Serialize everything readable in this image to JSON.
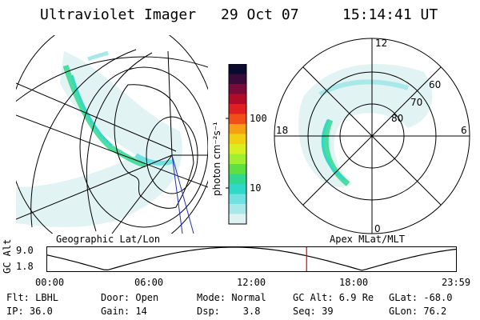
{
  "header": {
    "instrument": "Ultraviolet Imager",
    "date": "29 Oct 07",
    "time": "15:14:41 UT"
  },
  "left_panel": {
    "label": "Geographic Lat/Lon"
  },
  "right_panel": {
    "label": "Apex MLat/MLT",
    "mlt_labels": [
      "12",
      "18",
      "6",
      "0"
    ],
    "mlat_labels": [
      "60",
      "70",
      "80"
    ]
  },
  "colorbar": {
    "unit": "photon cm⁻²s⁻¹",
    "ticks": [
      "100",
      "10"
    ],
    "colors": [
      "#0a0a30",
      "#3a0a3a",
      "#7a0a3a",
      "#b40a2a",
      "#e02020",
      "#f05018",
      "#f5a010",
      "#f0d010",
      "#d8f020",
      "#a0f030",
      "#60e040",
      "#30d890",
      "#30d8c8",
      "#70e0e0",
      "#a8e8e8",
      "#dff2f2"
    ]
  },
  "timeline": {
    "ylabel": "GC Alt",
    "ytop": "9.0",
    "ybottom": "1.8",
    "xticks": [
      "00:00",
      "06:00",
      "12:00",
      "18:00",
      "23:59"
    ],
    "marker_hours": 15.245
  },
  "info": {
    "row1": [
      "Flt: LBHL",
      "Door: Open",
      "Mode: Normal",
      "GC Alt: 6.9 Re",
      "GLat: -68.0"
    ],
    "row2": [
      "IP: 36.0",
      "Gain: 14",
      "Dsp:    3.8",
      "Seq: 39",
      "GLon: 76.2"
    ]
  }
}
